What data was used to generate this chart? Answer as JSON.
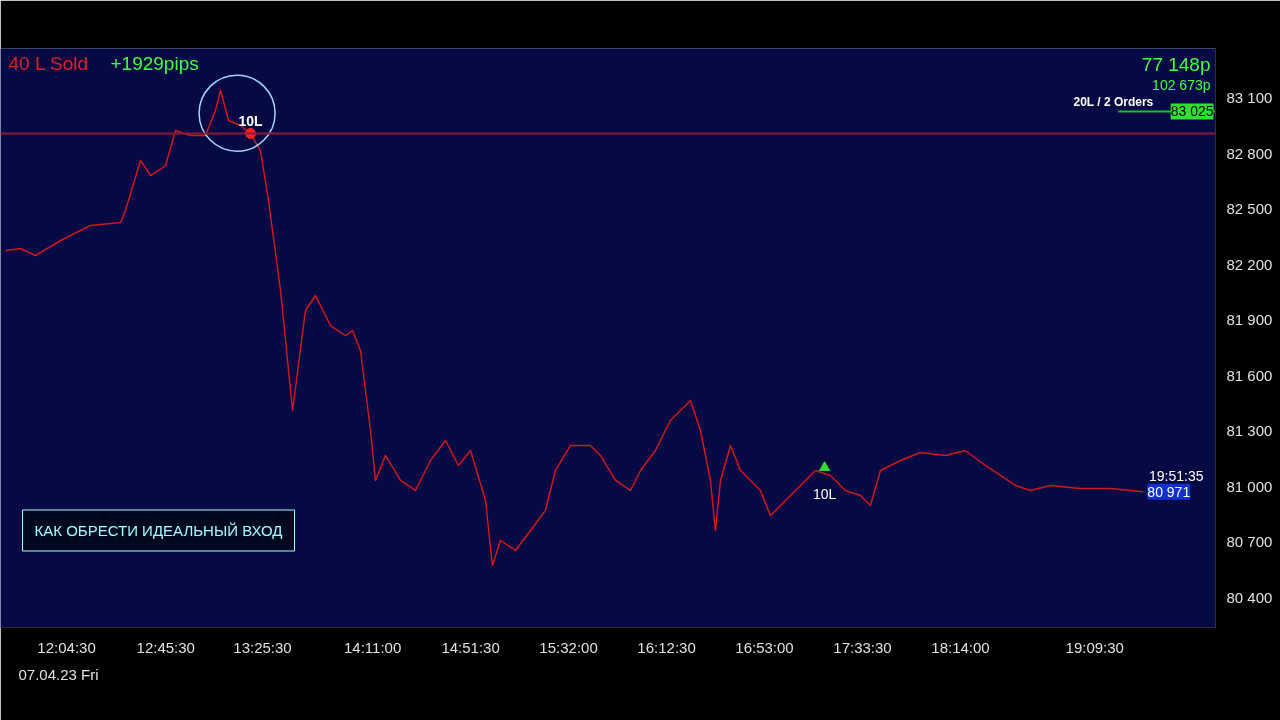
{
  "chart_data": {
    "type": "line",
    "x": [
      11.655,
      11.758,
      11.862,
      12.034,
      12.24,
      12.447,
      12.481,
      12.585,
      12.654,
      12.757,
      12.826,
      12.929,
      13.032,
      13.101,
      13.136,
      13.191,
      13.274,
      13.342,
      13.411,
      13.466,
      13.549,
      13.632,
      13.659,
      13.721,
      13.79,
      13.893,
      13.997,
      14.045,
      14.1,
      14.169,
      14.203,
      14.272,
      14.376,
      14.479,
      14.582,
      14.686,
      14.775,
      14.858,
      14.961,
      15.009,
      15.064,
      15.168,
      15.271,
      15.374,
      15.443,
      15.547,
      15.684,
      15.753,
      15.857,
      15.96,
      16.029,
      16.132,
      16.235,
      16.304,
      16.373,
      16.442,
      16.511,
      16.545,
      16.58,
      16.649,
      16.718,
      16.855,
      16.924,
      16.993,
      17.131,
      17.234,
      17.337,
      17.441,
      17.544,
      17.613,
      17.682,
      17.82,
      17.957,
      18.13,
      18.267,
      18.405,
      18.508,
      18.612,
      18.715,
      18.853,
      19.059,
      19.266,
      19.404,
      19.493
    ],
    "series": [
      {
        "color": "#d01818",
        "values": [
          82274,
          82285,
          82247,
          82328,
          82409,
          82425,
          82490,
          82760,
          82679,
          82733,
          82922,
          82895,
          82895,
          83030,
          83138,
          82976,
          82949,
          82906,
          82814,
          82544,
          82058,
          81410,
          81572,
          81950,
          82031,
          81869,
          81815,
          81842,
          81734,
          81302,
          81032,
          81167,
          81032,
          80978,
          81140,
          81248,
          81113,
          81194,
          80924,
          80573,
          80708,
          80654,
          80762,
          80870,
          81086,
          81221,
          81221,
          81167,
          81032,
          80978,
          81086,
          81194,
          81356,
          81410,
          81464,
          81302,
          81032,
          80762,
          81032,
          81221,
          81086,
          80978,
          80843,
          80897,
          81005,
          81086,
          81059,
          80978,
          80951,
          80897,
          81086,
          81140,
          81183,
          81167,
          81194,
          81113,
          81059,
          81005,
          80978,
          81005,
          80989,
          80989,
          80978,
          80971
        ]
      }
    ],
    "xlim": [
      11.62,
      19.99
    ],
    "ylim": [
      80238,
      83365
    ],
    "xticks": [
      {
        "value": 12.075,
        "label": "12:04:30"
      },
      {
        "value": 12.758333,
        "label": "12:45:30"
      },
      {
        "value": 13.425,
        "label": "13:25:30"
      },
      {
        "value": 14.183333,
        "label": "14:11:00"
      },
      {
        "value": 14.858333,
        "label": "14:51:30"
      },
      {
        "value": 15.533333,
        "label": "15:32:00"
      },
      {
        "value": 16.208333,
        "label": "16:12:30"
      },
      {
        "value": 16.883333,
        "label": "16:53:00"
      },
      {
        "value": 17.558333,
        "label": "17:33:30"
      },
      {
        "value": 18.233333,
        "label": "18:14:00"
      },
      {
        "value": 19.158333,
        "label": "19:09:30"
      }
    ],
    "yticks": [
      {
        "value": 80400,
        "label": "80 400"
      },
      {
        "value": 80700,
        "label": "80 700"
      },
      {
        "value": 81000,
        "label": "81 000"
      },
      {
        "value": 81300,
        "label": "81 300"
      },
      {
        "value": 81600,
        "label": "81 600"
      },
      {
        "value": 81900,
        "label": "81 900"
      },
      {
        "value": 82200,
        "label": "82 200"
      },
      {
        "value": 82500,
        "label": "82 500"
      },
      {
        "value": 82800,
        "label": "82 800"
      },
      {
        "value": 83100,
        "label": "83 100"
      }
    ],
    "ref_lines": [
      {
        "axis": "y",
        "value": 83025,
        "label": "20L / 2 Orders",
        "color": "#1fbf1f"
      },
      {
        "axis": "y",
        "value": 82906,
        "color": "#8b1a3a"
      }
    ],
    "annotations": [
      "40 L Sold",
      "+1929pips",
      "77 148p",
      "102 673p",
      "КАК ОБРЕСТИ ИДЕАЛЬНЫЙ ВХОД",
      "07.04.23 Fri",
      "19:51:35",
      {
        "text": "10L",
        "x": 13.342,
        "y": 82906
      },
      {
        "text": "10L",
        "x": 17.297,
        "y": 81102
      },
      {
        "text": "80 971",
        "x": 19.493,
        "y": 80971
      },
      {
        "text": "83 025",
        "x": 19.99,
        "y": 83025
      }
    ],
    "line_style": "solid"
  }
}
